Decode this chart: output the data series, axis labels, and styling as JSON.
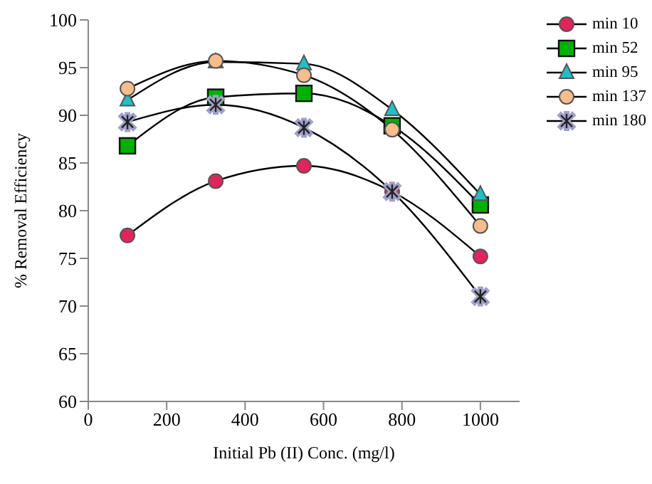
{
  "chart_data": {
    "type": "line",
    "xlabel": "Initial Pb (II) Conc. (mg/l)",
    "ylabel": "% Removal Efficiency",
    "x": [
      100,
      325,
      550,
      775,
      1000
    ],
    "xlim": [
      0,
      1100
    ],
    "xticks": [
      0,
      200,
      400,
      600,
      800,
      1000
    ],
    "ylim": [
      60,
      100
    ],
    "yticks": [
      60,
      65,
      70,
      75,
      80,
      85,
      90,
      95,
      100
    ],
    "legend": "top right",
    "series": [
      {
        "name": "min 10",
        "color": "#e0245e",
        "marker": "circle",
        "values": [
          77.4,
          83.1,
          84.7,
          82.0,
          75.2
        ]
      },
      {
        "name": "min 52",
        "color": "#00b000",
        "marker": "square",
        "values": [
          86.8,
          91.9,
          92.3,
          88.9,
          80.6
        ]
      },
      {
        "name": "min 95",
        "color": "#20c0c8",
        "marker": "triangle",
        "values": [
          91.6,
          95.6,
          95.4,
          90.6,
          81.7
        ]
      },
      {
        "name": "min 137",
        "color": "#f5be8c",
        "marker": "circle",
        "values": [
          92.8,
          95.7,
          94.2,
          88.5,
          78.4
        ]
      },
      {
        "name": "min 180",
        "color": "#a0a0c8",
        "marker": "cross",
        "values": [
          89.3,
          91.1,
          88.7,
          82.0,
          71.0
        ]
      }
    ]
  }
}
